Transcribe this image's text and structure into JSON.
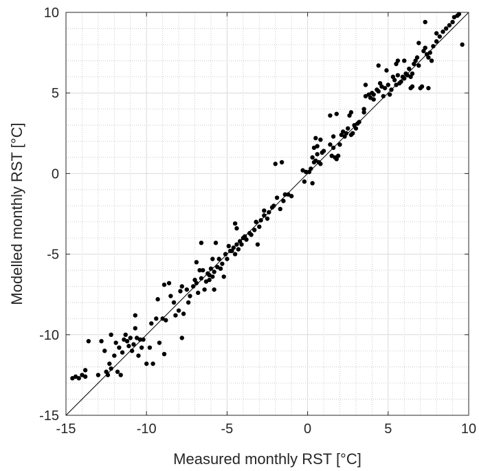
{
  "chart_data": {
    "type": "scatter",
    "title": "",
    "xlabel": "Measured monthly RST [°C]",
    "ylabel": "Modelled monthly RST [°C]",
    "xlim": [
      -15,
      10
    ],
    "ylim": [
      -15,
      10
    ],
    "xticks": [
      "-15",
      "-10",
      "-5",
      "0",
      "5",
      "10"
    ],
    "yticks": [
      "-15",
      "-10",
      "-5",
      "0",
      "5",
      "10"
    ],
    "grid": "major and minor",
    "reference_line": "1:1",
    "marker_color": "#000000",
    "points": [
      [
        -14.6,
        -12.7
      ],
      [
        -14.4,
        -12.6
      ],
      [
        -14.2,
        -12.7
      ],
      [
        -14.0,
        -12.5
      ],
      [
        -13.8,
        -12.2
      ],
      [
        -13.8,
        -12.6
      ],
      [
        -13.6,
        -10.4
      ],
      [
        -13.0,
        -12.5
      ],
      [
        -12.8,
        -10.4
      ],
      [
        -12.6,
        -11.0
      ],
      [
        -12.5,
        -12.3
      ],
      [
        -12.4,
        -12.5
      ],
      [
        -12.3,
        -11.8
      ],
      [
        -12.2,
        -12.1
      ],
      [
        -12.0,
        -11.3
      ],
      [
        -12.2,
        -10.0
      ],
      [
        -11.9,
        -10.5
      ],
      [
        -11.8,
        -12.3
      ],
      [
        -11.7,
        -10.8
      ],
      [
        -11.5,
        -11.1
      ],
      [
        -11.6,
        -12.5
      ],
      [
        -11.4,
        -10.3
      ],
      [
        -11.3,
        -10.0
      ],
      [
        -11.2,
        -10.4
      ],
      [
        -11.1,
        -10.7
      ],
      [
        -11.0,
        -10.2
      ],
      [
        -10.9,
        -11.0
      ],
      [
        -10.8,
        -10.6
      ],
      [
        -10.7,
        -9.6
      ],
      [
        -10.7,
        -8.8
      ],
      [
        -10.6,
        -10.2
      ],
      [
        -10.5,
        -11.3
      ],
      [
        -10.4,
        -10.3
      ],
      [
        -10.3,
        -10.8
      ],
      [
        -10.2,
        -10.3
      ],
      [
        -10.0,
        -11.8
      ],
      [
        -9.8,
        -10.8
      ],
      [
        -9.7,
        -9.3
      ],
      [
        -9.6,
        -11.8
      ],
      [
        -9.4,
        -9.0
      ],
      [
        -9.3,
        -7.8
      ],
      [
        -9.2,
        -10.5
      ],
      [
        -9.0,
        -9.0
      ],
      [
        -8.9,
        -6.9
      ],
      [
        -8.9,
        -11.2
      ],
      [
        -8.8,
        -9.1
      ],
      [
        -8.6,
        -6.8
      ],
      [
        -8.5,
        -7.6
      ],
      [
        -8.3,
        -8.0
      ],
      [
        -8.2,
        -8.8
      ],
      [
        -8.0,
        -8.5
      ],
      [
        -7.9,
        -7.3
      ],
      [
        -7.8,
        -7.0
      ],
      [
        -7.7,
        -8.7
      ],
      [
        -7.5,
        -7.2
      ],
      [
        -7.4,
        -8.0
      ],
      [
        -7.3,
        -7.6
      ],
      [
        -7.1,
        -7.0
      ],
      [
        -7.0,
        -6.6
      ],
      [
        -6.9,
        -6.8
      ],
      [
        -6.8,
        -7.4
      ],
      [
        -6.7,
        -6.0
      ],
      [
        -6.6,
        -6.5
      ],
      [
        -6.5,
        -6.0
      ],
      [
        -6.4,
        -7.2
      ],
      [
        -6.3,
        -6.7
      ],
      [
        -6.2,
        -6.2
      ],
      [
        -6.1,
        -6.3
      ],
      [
        -6.0,
        -5.9
      ],
      [
        -5.9,
        -6.4
      ],
      [
        -5.8,
        -7.2
      ],
      [
        -5.6,
        -5.8
      ],
      [
        -5.5,
        -5.3
      ],
      [
        -5.4,
        -5.9
      ],
      [
        -5.3,
        -5.6
      ],
      [
        -5.2,
        -6.4
      ],
      [
        -5.1,
        -5.0
      ],
      [
        -5.0,
        -5.3
      ],
      [
        -4.9,
        -4.5
      ],
      [
        -4.8,
        -4.8
      ],
      [
        -4.7,
        -4.8
      ],
      [
        -4.6,
        -4.6
      ],
      [
        -4.5,
        -5.0
      ],
      [
        -4.4,
        -4.4
      ],
      [
        -4.3,
        -4.7
      ],
      [
        -4.2,
        -4.2
      ],
      [
        -4.1,
        -4.4
      ],
      [
        -4.0,
        -4.0
      ],
      [
        -3.9,
        -3.9
      ],
      [
        -3.8,
        -4.1
      ],
      [
        -3.6,
        -3.7
      ],
      [
        -3.5,
        -3.8
      ],
      [
        -3.3,
        -3.5
      ],
      [
        -3.2,
        -3.0
      ],
      [
        -3.0,
        -3.3
      ],
      [
        -2.9,
        -2.9
      ],
      [
        -2.7,
        -2.6
      ],
      [
        -2.5,
        -2.8
      ],
      [
        -2.4,
        -2.4
      ],
      [
        -2.2,
        -2.1
      ],
      [
        -6.6,
        -4.3
      ],
      [
        -6.9,
        -5.5
      ],
      [
        -5.7,
        -4.3
      ],
      [
        -5.8,
        -6.1
      ],
      [
        -6.1,
        -6.6
      ],
      [
        -5.9,
        -5.3
      ],
      [
        -4.4,
        -3.4
      ],
      [
        -4.5,
        -3.1
      ],
      [
        -2.7,
        -2.3
      ],
      [
        -2.1,
        -2.0
      ],
      [
        -1.9,
        -1.5
      ],
      [
        -1.7,
        -2.2
      ],
      [
        -1.5,
        -1.7
      ],
      [
        -1.4,
        -1.3
      ],
      [
        -1.2,
        -1.3
      ],
      [
        -1.0,
        -1.4
      ],
      [
        -2.0,
        0.6
      ],
      [
        -1.6,
        0.7
      ],
      [
        -0.3,
        0.2
      ],
      [
        -0.1,
        0.1
      ],
      [
        0.1,
        0.1
      ],
      [
        0.2,
        0.3
      ],
      [
        0.3,
        -0.6
      ],
      [
        0.3,
        1.0
      ],
      [
        0.4,
        0.7
      ],
      [
        0.5,
        0.8
      ],
      [
        0.6,
        1.2
      ],
      [
        0.7,
        0.7
      ],
      [
        0.8,
        0.6
      ],
      [
        0.9,
        1.3
      ],
      [
        1.0,
        1.4
      ],
      [
        0.4,
        1.6
      ],
      [
        0.5,
        2.2
      ],
      [
        0.6,
        1.7
      ],
      [
        1.4,
        1.8
      ],
      [
        1.5,
        1.1
      ],
      [
        1.6,
        1.6
      ],
      [
        1.7,
        1.0
      ],
      [
        1.8,
        0.9
      ],
      [
        1.9,
        1.1
      ],
      [
        2.0,
        1.8
      ],
      [
        2.1,
        2.4
      ],
      [
        2.2,
        2.6
      ],
      [
        2.3,
        2.3
      ],
      [
        2.4,
        2.5
      ],
      [
        2.5,
        2.8
      ],
      [
        2.6,
        3.6
      ],
      [
        2.7,
        2.4
      ],
      [
        2.8,
        2.5
      ],
      [
        2.9,
        3.0
      ],
      [
        3.0,
        2.8
      ],
      [
        3.1,
        3.1
      ],
      [
        3.2,
        3.2
      ],
      [
        1.4,
        3.6
      ],
      [
        1.6,
        2.3
      ],
      [
        1.8,
        3.7
      ],
      [
        2.7,
        3.8
      ],
      [
        3.5,
        4.0
      ],
      [
        3.6,
        4.8
      ],
      [
        3.8,
        4.9
      ],
      [
        3.9,
        4.7
      ],
      [
        4.0,
        5.0
      ],
      [
        4.1,
        4.6
      ],
      [
        4.3,
        5.2
      ],
      [
        4.4,
        5.1
      ],
      [
        4.5,
        5.6
      ],
      [
        4.6,
        5.4
      ],
      [
        4.7,
        4.8
      ],
      [
        4.8,
        5.3
      ],
      [
        5.0,
        5.5
      ],
      [
        5.1,
        4.9
      ],
      [
        5.2,
        5.2
      ],
      [
        5.3,
        6.0
      ],
      [
        5.4,
        5.8
      ],
      [
        5.5,
        5.5
      ],
      [
        5.6,
        6.1
      ],
      [
        5.7,
        5.6
      ],
      [
        5.8,
        5.7
      ],
      [
        5.9,
        6.0
      ],
      [
        6.0,
        5.9
      ],
      [
        6.1,
        6.2
      ],
      [
        6.2,
        6.1
      ],
      [
        6.3,
        6.5
      ],
      [
        6.4,
        6.0
      ],
      [
        6.5,
        6.2
      ],
      [
        6.6,
        6.8
      ],
      [
        6.7,
        7.0
      ],
      [
        6.8,
        7.2
      ],
      [
        6.9,
        6.7
      ],
      [
        7.0,
        5.3
      ],
      [
        7.1,
        5.4
      ],
      [
        7.2,
        7.6
      ],
      [
        7.3,
        7.8
      ],
      [
        7.4,
        7.4
      ],
      [
        7.5,
        7.2
      ],
      [
        7.6,
        7.5
      ],
      [
        7.7,
        7.0
      ],
      [
        7.8,
        7.9
      ],
      [
        8.0,
        8.2
      ],
      [
        8.2,
        8.5
      ],
      [
        8.4,
        8.8
      ],
      [
        8.6,
        9.0
      ],
      [
        8.8,
        9.2
      ],
      [
        9.0,
        9.4
      ],
      [
        9.1,
        9.7
      ],
      [
        9.3,
        9.8
      ],
      [
        9.4,
        9.9
      ],
      [
        7.3,
        9.4
      ],
      [
        8.0,
        8.7
      ],
      [
        6.4,
        5.3
      ],
      [
        6.5,
        5.4
      ],
      [
        5.5,
        6.8
      ],
      [
        4.4,
        6.7
      ],
      [
        4.1,
        4.9
      ],
      [
        3.5,
        3.8
      ],
      [
        3.6,
        5.5
      ],
      [
        -7.8,
        -10.2
      ],
      [
        -3.1,
        -4.4
      ],
      [
        -0.2,
        -0.5
      ],
      [
        0.8,
        2.1
      ],
      [
        9.6,
        8.0
      ],
      [
        7.5,
        5.3
      ],
      [
        6.9,
        8.1
      ],
      [
        6.0,
        7.0
      ],
      [
        5.6,
        7.0
      ],
      [
        4.9,
        6.4
      ]
    ]
  }
}
